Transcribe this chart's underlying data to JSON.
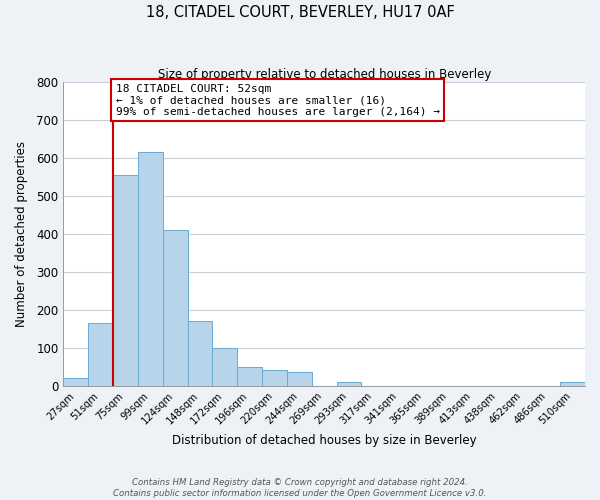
{
  "title": "18, CITADEL COURT, BEVERLEY, HU17 0AF",
  "subtitle": "Size of property relative to detached houses in Beverley",
  "xlabel": "Distribution of detached houses by size in Beverley",
  "ylabel": "Number of detached properties",
  "bar_labels": [
    "27sqm",
    "51sqm",
    "75sqm",
    "99sqm",
    "124sqm",
    "148sqm",
    "172sqm",
    "196sqm",
    "220sqm",
    "244sqm",
    "269sqm",
    "293sqm",
    "317sqm",
    "341sqm",
    "365sqm",
    "389sqm",
    "413sqm",
    "438sqm",
    "462sqm",
    "486sqm",
    "510sqm"
  ],
  "bar_values": [
    20,
    165,
    555,
    615,
    410,
    170,
    100,
    50,
    40,
    35,
    0,
    10,
    0,
    0,
    0,
    0,
    0,
    0,
    0,
    0,
    10
  ],
  "bar_color": "#b8d4ea",
  "bar_edge_color": "#6aaad4",
  "ylim": [
    0,
    800
  ],
  "yticks": [
    0,
    100,
    200,
    300,
    400,
    500,
    600,
    700,
    800
  ],
  "property_line_color": "#cc0000",
  "annotation_text": "18 CITADEL COURT: 52sqm\n← 1% of detached houses are smaller (16)\n99% of semi-detached houses are larger (2,164) →",
  "annotation_box_color": "#ffffff",
  "annotation_box_edge": "#cc0000",
  "footer_line1": "Contains HM Land Registry data © Crown copyright and database right 2024.",
  "footer_line2": "Contains public sector information licensed under the Open Government Licence v3.0.",
  "bg_color": "#eef2f7",
  "plot_bg_color": "#ffffff",
  "grid_color": "#c8d0da"
}
